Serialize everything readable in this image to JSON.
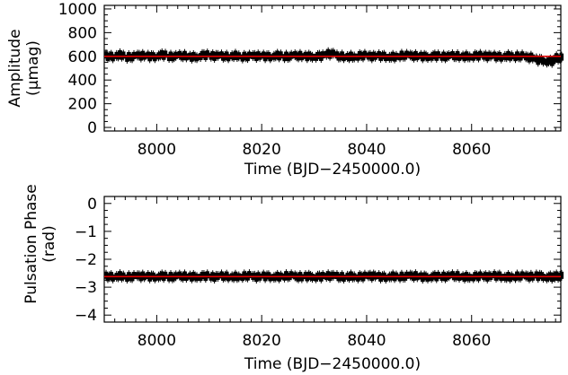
{
  "chart_data": [
    {
      "type": "scatter",
      "xlabel": "Time (BJD−2450000.0)",
      "ylabel_line1": "Amplitude",
      "ylabel_line2": "(μmag)",
      "xlim": [
        7990,
        8077
      ],
      "ylim": [
        -30,
        1030
      ],
      "xticks": [
        8000,
        8020,
        8040,
        8060
      ],
      "xtick_labels": [
        "8000",
        "8020",
        "8040",
        "8060"
      ],
      "yticks": [
        0,
        200,
        400,
        600,
        800,
        1000
      ],
      "ytick_labels": [
        "0",
        "200",
        "400",
        "600",
        "800",
        "1000"
      ],
      "series": [
        {
          "values_description_x_start": 7990.5,
          "x": [
            7991,
            7993,
            7995,
            7997,
            7999,
            8001,
            8003,
            8005,
            8007,
            8009,
            8011,
            8013,
            8015,
            8017,
            8019,
            8021,
            8023,
            8025,
            8027,
            8029,
            8031,
            8033,
            8035,
            8037,
            8039,
            8041,
            8043,
            8045,
            8047,
            8049,
            8051,
            8053,
            8055,
            8057,
            8059,
            8061,
            8063,
            8065,
            8067,
            8069,
            8071,
            8073,
            8075,
            8076.5
          ],
          "y": [
            600,
            610,
            595,
            605,
            600,
            612,
            598,
            604,
            596,
            610,
            603,
            600,
            606,
            598,
            602,
            600,
            607,
            598,
            604,
            601,
            603,
            620,
            600,
            598,
            605,
            600,
            602,
            597,
            606,
            603,
            600,
            604,
            598,
            602,
            600,
            605,
            601,
            598,
            603,
            600,
            590,
            570,
            560,
            585
          ]
        },
        {
          "x": [
            7990,
            8077
          ],
          "y": [
            600,
            600
          ],
          "color": "#e00000"
        }
      ]
    },
    {
      "type": "scatter",
      "xlabel": "Time (BJD−2450000.0)",
      "ylabel_line1": "Pulsation Phase",
      "ylabel_line2": "(rad)",
      "xlim": [
        7990,
        8077
      ],
      "ylim": [
        -4.25,
        0.25
      ],
      "xticks": [
        8000,
        8020,
        8040,
        8060
      ],
      "xtick_labels": [
        "8000",
        "8020",
        "8040",
        "8060"
      ],
      "yticks": [
        0,
        -1,
        -2,
        -3,
        -4
      ],
      "ytick_labels": [
        "0",
        "−1",
        "−2",
        "−3",
        "−4"
      ],
      "series": [
        {
          "x": [
            7991,
            7993,
            7995,
            7997,
            7999,
            8001,
            8003,
            8005,
            8007,
            8009,
            8011,
            8013,
            8015,
            8017,
            8019,
            8021,
            8023,
            8025,
            8027,
            8029,
            8031,
            8033,
            8035,
            8037,
            8039,
            8041,
            8043,
            8045,
            8047,
            8049,
            8051,
            8053,
            8055,
            8057,
            8059,
            8061,
            8063,
            8065,
            8067,
            8069,
            8071,
            8073,
            8075,
            8076.5
          ],
          "y": [
            -2.62,
            -2.6,
            -2.63,
            -2.61,
            -2.62,
            -2.6,
            -2.63,
            -2.61,
            -2.62,
            -2.6,
            -2.63,
            -2.61,
            -2.62,
            -2.6,
            -2.63,
            -2.61,
            -2.62,
            -2.6,
            -2.63,
            -2.61,
            -2.62,
            -2.6,
            -2.63,
            -2.61,
            -2.62,
            -2.6,
            -2.63,
            -2.61,
            -2.62,
            -2.6,
            -2.63,
            -2.61,
            -2.62,
            -2.6,
            -2.63,
            -2.61,
            -2.62,
            -2.6,
            -2.63,
            -2.61,
            -2.62,
            -2.6,
            -2.63,
            -2.61
          ]
        },
        {
          "x": [
            7990,
            8077
          ],
          "y": [
            -2.62,
            -2.62
          ],
          "color": "#e00000"
        }
      ]
    }
  ]
}
